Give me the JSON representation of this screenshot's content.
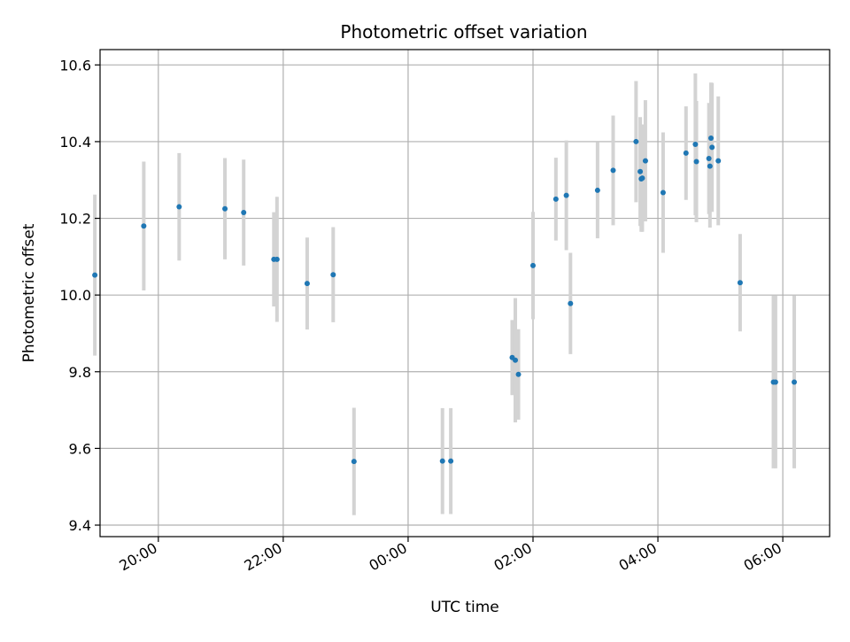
{
  "chart_data": {
    "type": "scatter",
    "title": "Photometric offset variation",
    "xlabel": "UTC time",
    "ylabel": "Photometric offset",
    "xlim": [
      "19:04",
      "06:45"
    ],
    "ylim": [
      9.37,
      10.64
    ],
    "x_ticks": [
      "20:00",
      "22:00",
      "00:00",
      "02:00",
      "04:00",
      "06:00"
    ],
    "y_ticks": [
      9.4,
      9.6,
      9.8,
      10.0,
      10.2,
      10.4,
      10.6
    ],
    "grid": true,
    "marker_color": "#1f77b4",
    "errorbar_color": "#d3d3d3",
    "points": [
      {
        "time": "18:59",
        "offset": 10.052,
        "err": 0.21
      },
      {
        "time": "19:46",
        "offset": 10.18,
        "err": 0.168
      },
      {
        "time": "20:20",
        "offset": 10.23,
        "err": 0.14
      },
      {
        "time": "21:04",
        "offset": 10.225,
        "err": 0.132
      },
      {
        "time": "21:22",
        "offset": 10.215,
        "err": 0.138
      },
      {
        "time": "21:51",
        "offset": 10.093,
        "err": 0.123
      },
      {
        "time": "21:54",
        "offset": 10.093,
        "err": 0.163
      },
      {
        "time": "22:23",
        "offset": 10.03,
        "err": 0.12
      },
      {
        "time": "22:48",
        "offset": 10.053,
        "err": 0.124
      },
      {
        "time": "23:08",
        "offset": 9.566,
        "err": 0.14
      },
      {
        "time": "00:33",
        "offset": 9.567,
        "err": 0.138
      },
      {
        "time": "00:41",
        "offset": 9.567,
        "err": 0.138
      },
      {
        "time": "01:40",
        "offset": 9.837,
        "err": 0.098
      },
      {
        "time": "01:43",
        "offset": 9.83,
        "err": 0.162
      },
      {
        "time": "01:46",
        "offset": 9.793,
        "err": 0.118
      },
      {
        "time": "02:00",
        "offset": 10.077,
        "err": 0.14
      },
      {
        "time": "02:22",
        "offset": 10.25,
        "err": 0.108
      },
      {
        "time": "02:32",
        "offset": 10.26,
        "err": 0.143
      },
      {
        "time": "02:36",
        "offset": 9.978,
        "err": 0.132
      },
      {
        "time": "03:02",
        "offset": 10.273,
        "err": 0.125
      },
      {
        "time": "03:17",
        "offset": 10.325,
        "err": 0.143
      },
      {
        "time": "03:39",
        "offset": 10.4,
        "err": 0.158
      },
      {
        "time": "03:43",
        "offset": 10.322,
        "err": 0.142
      },
      {
        "time": "03:44",
        "offset": 10.303,
        "err": 0.138
      },
      {
        "time": "03:45",
        "offset": 10.305,
        "err": 0.14
      },
      {
        "time": "03:48",
        "offset": 10.35,
        "err": 0.158
      },
      {
        "time": "04:05",
        "offset": 10.267,
        "err": 0.157
      },
      {
        "time": "04:27",
        "offset": 10.37,
        "err": 0.122
      },
      {
        "time": "04:36",
        "offset": 10.393,
        "err": 0.185
      },
      {
        "time": "04:37",
        "offset": 10.348,
        "err": 0.158
      },
      {
        "time": "04:49",
        "offset": 10.356,
        "err": 0.145
      },
      {
        "time": "04:50",
        "offset": 10.336,
        "err": 0.16
      },
      {
        "time": "04:51",
        "offset": 10.409,
        "err": 0.145
      },
      {
        "time": "04:52",
        "offset": 10.385,
        "err": 0.168
      },
      {
        "time": "04:58",
        "offset": 10.35,
        "err": 0.168
      },
      {
        "time": "05:19",
        "offset": 10.032,
        "err": 0.127
      },
      {
        "time": "05:51",
        "offset": 9.773,
        "err": 0.225
      },
      {
        "time": "05:53",
        "offset": 9.773,
        "err": 0.225
      },
      {
        "time": "06:11",
        "offset": 9.773,
        "err": 0.225
      }
    ]
  }
}
